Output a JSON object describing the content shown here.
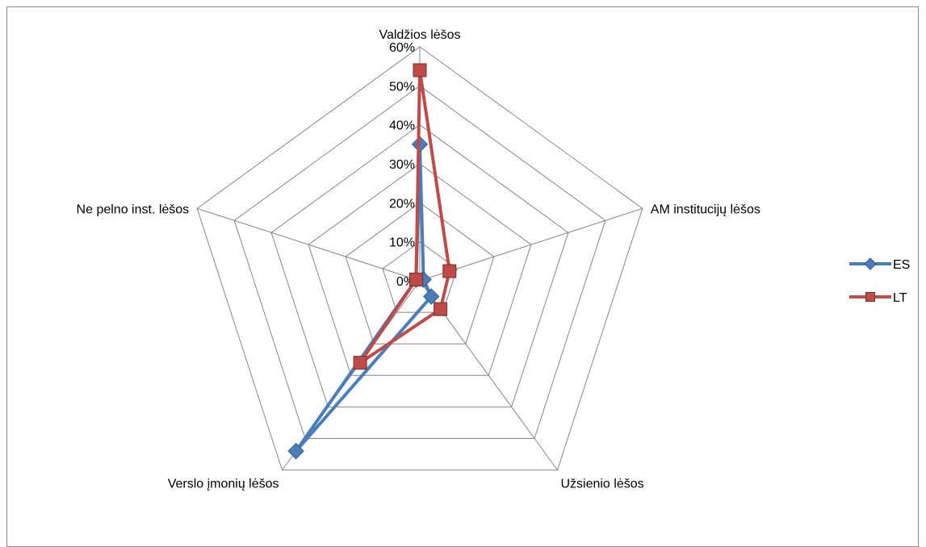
{
  "chart_data": {
    "type": "radar",
    "title": "",
    "categories": [
      "Valdžios lėšos",
      "AM institucijų lėšos",
      "Užsienio lėšos",
      "Verslo įmonių lėšos",
      "Ne pelno inst. lėšos"
    ],
    "tick_labels": [
      "0%",
      "10%",
      "20%",
      "30%",
      "40%",
      "50%",
      "60%"
    ],
    "rmax": 0.6,
    "series": [
      {
        "name": "ES",
        "values": [
          0.35,
          0.01,
          0.05,
          0.54,
          0.01
        ],
        "color": "#4a7ebb",
        "marker": "diamond"
      },
      {
        "name": "LT",
        "values": [
          0.54,
          0.08,
          0.09,
          0.26,
          0.01
        ],
        "color": "#be4b48",
        "marker": "square"
      }
    ],
    "legend": {
      "position": "right"
    },
    "grid": true
  }
}
